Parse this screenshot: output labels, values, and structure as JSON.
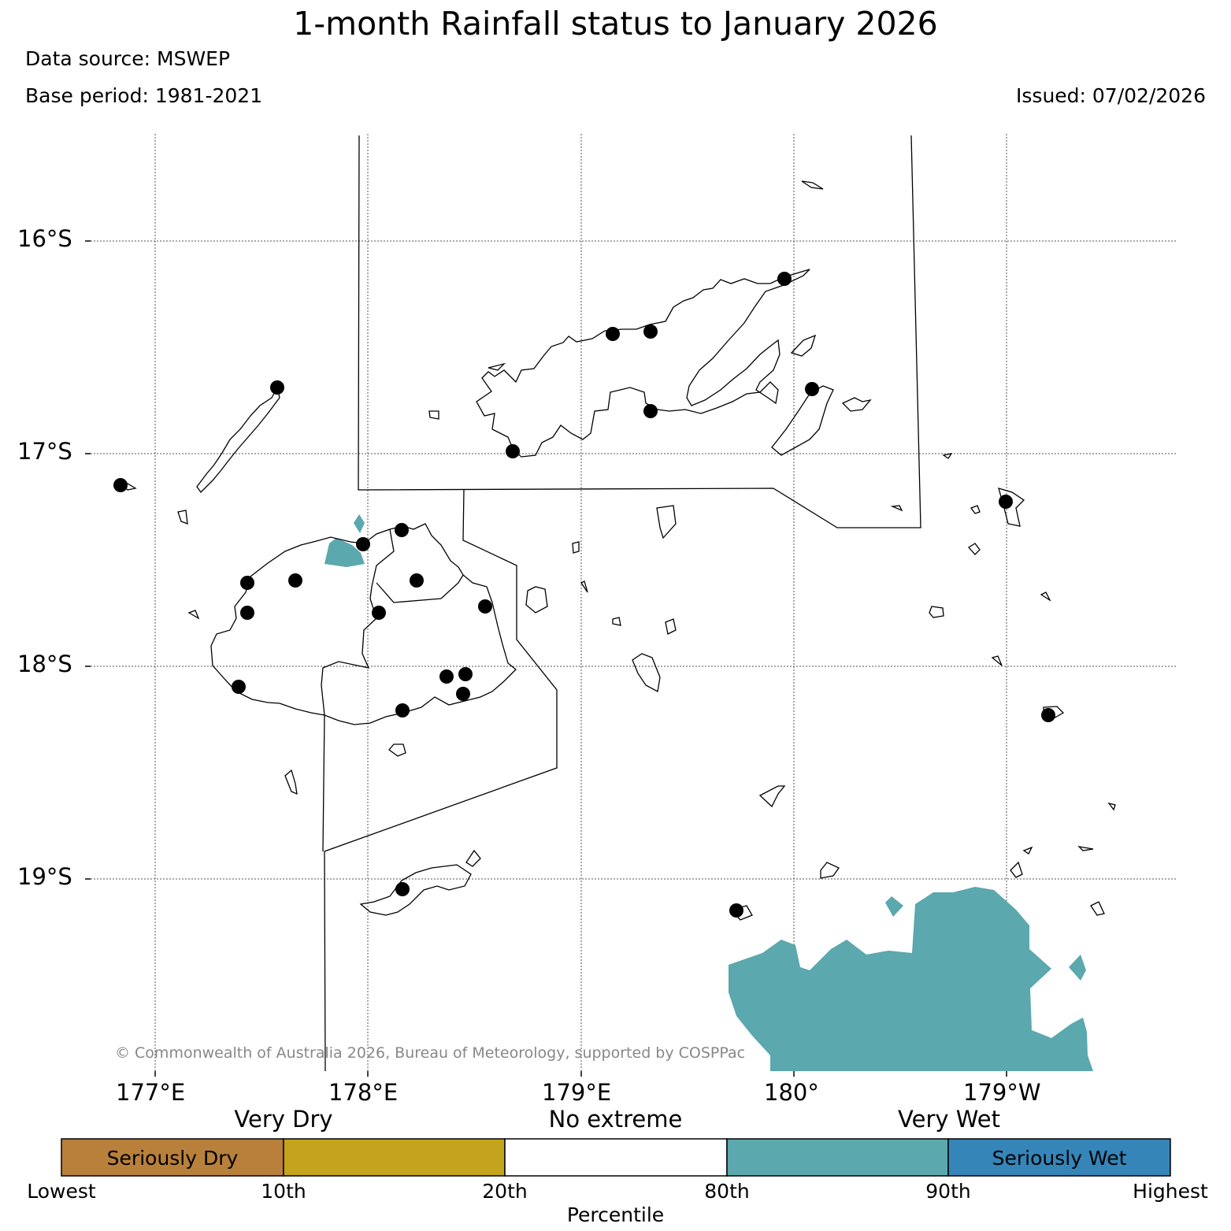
{
  "title": "1-month Rainfall status to January 2026",
  "data_source": "Data source: MSWEP",
  "base_period": "Base period: 1981-2021",
  "issued": "Issued: 07/02/2026",
  "latitude_labels": [
    "16°S",
    "17°S",
    "18°S",
    "19°S"
  ],
  "longitude_labels": [
    "177°E",
    "178°E",
    "179°E",
    "180°",
    "179°W"
  ],
  "credit": "© Commonwealth of Australia 2026, Bureau of Meteorology, supported by COSPPac",
  "legend": {
    "categories": [
      "Very Dry",
      "No extreme",
      "Very Wet"
    ],
    "boxes": [
      {
        "label": "Seriously Dry",
        "color": "#b8803a"
      },
      {
        "label": "",
        "color": "#c4a41c"
      },
      {
        "label": "",
        "color": "#ffffff"
      },
      {
        "label": "",
        "color": "#5ba8ae"
      },
      {
        "label": "Seriously Wet",
        "color": "#3585b8"
      }
    ],
    "percentiles": [
      "Lowest",
      "10th",
      "20th",
      "80th",
      "90th",
      "Highest"
    ],
    "axis_title": "Percentile"
  },
  "colors": {
    "very_wet": "#5ba8ae",
    "station": "#000000",
    "grid": "#555555",
    "credit_text": "#888888"
  }
}
